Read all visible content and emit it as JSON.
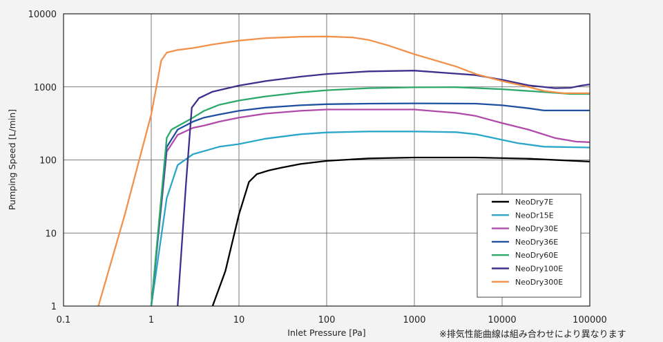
{
  "chart_data": {
    "type": "line",
    "xlabel": "Inlet Pressure [Pa]",
    "ylabel": "Pumping Speed [L/min]",
    "x_scale": "log",
    "y_scale": "log",
    "xlim": [
      0.1,
      100000
    ],
    "ylim": [
      1,
      10000
    ],
    "x_ticks": [
      "0.1",
      "1",
      "10",
      "100",
      "1000",
      "10000",
      "100000"
    ],
    "y_ticks": [
      "1",
      "10",
      "100",
      "1000",
      "10000"
    ],
    "grid": true,
    "legend_position": "bottom-right",
    "series": [
      {
        "name": "NeoDry7E",
        "color": "#000000",
        "points": [
          [
            5,
            1
          ],
          [
            7,
            3
          ],
          [
            10,
            18
          ],
          [
            13,
            50
          ],
          [
            16,
            64
          ],
          [
            22,
            72
          ],
          [
            30,
            78
          ],
          [
            50,
            88
          ],
          [
            100,
            97
          ],
          [
            300,
            105
          ],
          [
            1000,
            108
          ],
          [
            5000,
            108
          ],
          [
            20000,
            104
          ],
          [
            100000,
            95
          ]
        ]
      },
      {
        "name": "NeoDr15E",
        "color": "#2aa6c8",
        "points": [
          [
            1,
            1
          ],
          [
            1.5,
            30
          ],
          [
            2,
            85
          ],
          [
            3,
            120
          ],
          [
            4,
            132
          ],
          [
            6,
            152
          ],
          [
            10,
            165
          ],
          [
            20,
            195
          ],
          [
            50,
            225
          ],
          [
            100,
            238
          ],
          [
            300,
            245
          ],
          [
            1000,
            245
          ],
          [
            3000,
            240
          ],
          [
            5000,
            225
          ],
          [
            8000,
            200
          ],
          [
            15000,
            170
          ],
          [
            30000,
            152
          ],
          [
            100000,
            148
          ]
        ]
      },
      {
        "name": "NeoDry30E",
        "color": "#b04aa8",
        "points": [
          [
            1,
            1
          ],
          [
            1.5,
            130
          ],
          [
            2,
            220
          ],
          [
            3,
            275
          ],
          [
            4,
            295
          ],
          [
            6,
            335
          ],
          [
            10,
            380
          ],
          [
            20,
            430
          ],
          [
            50,
            470
          ],
          [
            100,
            490
          ],
          [
            300,
            490
          ],
          [
            1000,
            490
          ],
          [
            3000,
            440
          ],
          [
            5000,
            400
          ],
          [
            10000,
            320
          ],
          [
            20000,
            260
          ],
          [
            40000,
            200
          ],
          [
            70000,
            178
          ],
          [
            100000,
            175
          ]
        ]
      },
      {
        "name": "NeoDry36E",
        "color": "#1f4fa0",
        "points": [
          [
            1,
            1
          ],
          [
            1.5,
            150
          ],
          [
            2,
            260
          ],
          [
            3,
            335
          ],
          [
            4,
            380
          ],
          [
            6,
            420
          ],
          [
            10,
            470
          ],
          [
            20,
            520
          ],
          [
            50,
            560
          ],
          [
            100,
            580
          ],
          [
            300,
            590
          ],
          [
            1000,
            595
          ],
          [
            5000,
            590
          ],
          [
            10000,
            560
          ],
          [
            20000,
            510
          ],
          [
            30000,
            475
          ],
          [
            100000,
            475
          ]
        ]
      },
      {
        "name": "NeoDry60E",
        "color": "#2ca86a",
        "points": [
          [
            1,
            1
          ],
          [
            1.5,
            200
          ],
          [
            1.7,
            260
          ],
          [
            3,
            380
          ],
          [
            4,
            470
          ],
          [
            6,
            570
          ],
          [
            10,
            650
          ],
          [
            20,
            740
          ],
          [
            50,
            840
          ],
          [
            100,
            900
          ],
          [
            300,
            960
          ],
          [
            1000,
            985
          ],
          [
            3000,
            990
          ],
          [
            10000,
            930
          ],
          [
            30000,
            850
          ],
          [
            60000,
            800
          ],
          [
            100000,
            800
          ]
        ]
      },
      {
        "name": "NeoDry100E",
        "color": "#3e2f8c",
        "points": [
          [
            2,
            1
          ],
          [
            2.5,
            50
          ],
          [
            2.9,
            520
          ],
          [
            3.5,
            700
          ],
          [
            5,
            860
          ],
          [
            10,
            1040
          ],
          [
            20,
            1200
          ],
          [
            50,
            1380
          ],
          [
            100,
            1500
          ],
          [
            300,
            1630
          ],
          [
            1000,
            1670
          ],
          [
            5000,
            1450
          ],
          [
            10000,
            1250
          ],
          [
            20000,
            1050
          ],
          [
            40000,
            960
          ],
          [
            60000,
            970
          ],
          [
            80000,
            1040
          ],
          [
            100000,
            1080
          ]
        ]
      },
      {
        "name": "NeoDry300E",
        "color": "#f2914a",
        "points": [
          [
            0.25,
            1
          ],
          [
            0.5,
            18
          ],
          [
            1,
            420
          ],
          [
            1.3,
            2300
          ],
          [
            1.5,
            2950
          ],
          [
            2,
            3200
          ],
          [
            3,
            3400
          ],
          [
            5,
            3800
          ],
          [
            10,
            4300
          ],
          [
            20,
            4650
          ],
          [
            50,
            4850
          ],
          [
            100,
            4900
          ],
          [
            200,
            4750
          ],
          [
            300,
            4400
          ],
          [
            500,
            3700
          ],
          [
            1000,
            2800
          ],
          [
            3000,
            1900
          ],
          [
            5000,
            1500
          ],
          [
            10000,
            1200
          ],
          [
            20000,
            1000
          ],
          [
            30000,
            880
          ],
          [
            50000,
            820
          ],
          [
            100000,
            820
          ]
        ]
      }
    ]
  },
  "footnote": "※排気性能曲線は組み合わせにより異なります"
}
